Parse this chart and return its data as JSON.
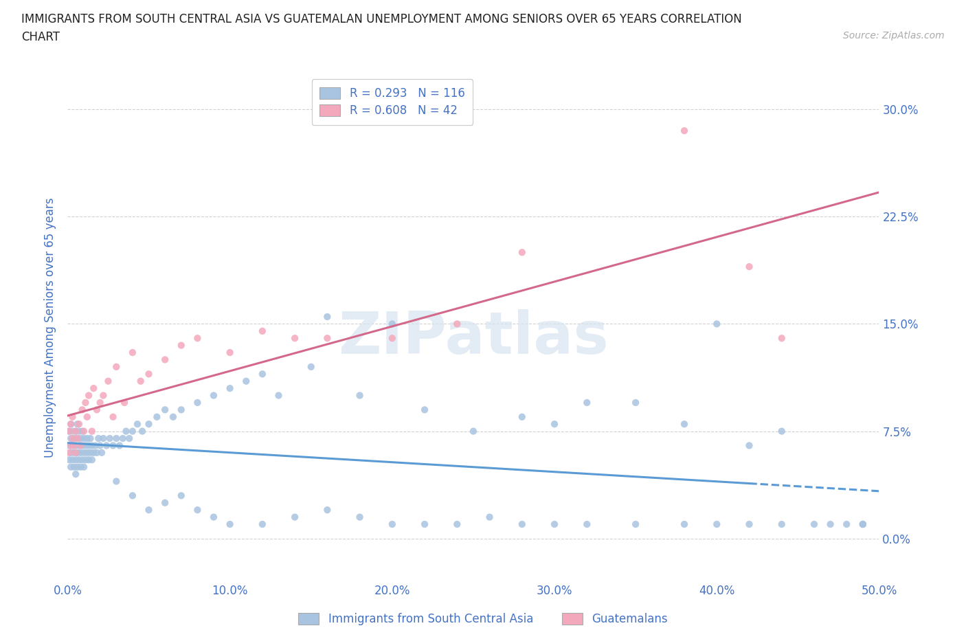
{
  "title_line1": "IMMIGRANTS FROM SOUTH CENTRAL ASIA VS GUATEMALAN UNEMPLOYMENT AMONG SENIORS OVER 65 YEARS CORRELATION",
  "title_line2": "CHART",
  "source": "Source: ZipAtlas.com",
  "ylabel": "Unemployment Among Seniors over 65 years",
  "xlim": [
    0.0,
    0.5
  ],
  "ylim": [
    -0.03,
    0.325
  ],
  "yticks": [
    0.0,
    0.075,
    0.15,
    0.225,
    0.3
  ],
  "ytick_labels": [
    "0.0%",
    "7.5%",
    "15.0%",
    "22.5%",
    "30.0%"
  ],
  "xticks": [
    0.0,
    0.1,
    0.2,
    0.3,
    0.4,
    0.5
  ],
  "xtick_labels": [
    "0.0%",
    "10.0%",
    "20.0%",
    "30.0%",
    "40.0%",
    "50.0%"
  ],
  "legend_blue_label": "Immigrants from South Central Asia",
  "legend_pink_label": "Guatemalans",
  "R_blue": "0.293",
  "N_blue": "116",
  "R_pink": "0.608",
  "N_pink": "42",
  "blue_scatter_color": "#a8c4e0",
  "pink_scatter_color": "#f4a8bc",
  "blue_line_color": "#5b9bd5",
  "pink_line_color": "#d4688a",
  "tick_color": "#4472c4",
  "legend_text_color": "#4472c4",
  "title_color": "#222222",
  "source_color": "#aaaaaa",
  "grid_color": "#cccccc",
  "background_color": "#ffffff",
  "watermark_text": "ZIPatlas",
  "blue_line_solid_end": 0.42,
  "blue_scatter_x": [
    0.001,
    0.001,
    0.001,
    0.002,
    0.002,
    0.002,
    0.002,
    0.003,
    0.003,
    0.003,
    0.004,
    0.004,
    0.004,
    0.005,
    0.005,
    0.005,
    0.005,
    0.006,
    0.006,
    0.006,
    0.006,
    0.007,
    0.007,
    0.007,
    0.008,
    0.008,
    0.008,
    0.009,
    0.009,
    0.009,
    0.01,
    0.01,
    0.01,
    0.011,
    0.011,
    0.012,
    0.012,
    0.013,
    0.013,
    0.014,
    0.014,
    0.015,
    0.015,
    0.016,
    0.017,
    0.018,
    0.019,
    0.02,
    0.021,
    0.022,
    0.024,
    0.026,
    0.028,
    0.03,
    0.032,
    0.034,
    0.036,
    0.038,
    0.04,
    0.043,
    0.046,
    0.05,
    0.055,
    0.06,
    0.065,
    0.07,
    0.08,
    0.09,
    0.1,
    0.11,
    0.12,
    0.13,
    0.15,
    0.16,
    0.18,
    0.2,
    0.22,
    0.25,
    0.28,
    0.3,
    0.32,
    0.35,
    0.38,
    0.4,
    0.42,
    0.44,
    0.03,
    0.04,
    0.05,
    0.06,
    0.07,
    0.08,
    0.09,
    0.1,
    0.12,
    0.14,
    0.16,
    0.18,
    0.2,
    0.22,
    0.24,
    0.26,
    0.28,
    0.3,
    0.32,
    0.35,
    0.38,
    0.4,
    0.42,
    0.44,
    0.46,
    0.47,
    0.48,
    0.49,
    0.49,
    0.49
  ],
  "blue_scatter_y": [
    0.055,
    0.065,
    0.075,
    0.05,
    0.06,
    0.07,
    0.08,
    0.055,
    0.065,
    0.075,
    0.05,
    0.06,
    0.07,
    0.045,
    0.055,
    0.065,
    0.075,
    0.05,
    0.06,
    0.07,
    0.08,
    0.055,
    0.065,
    0.075,
    0.05,
    0.06,
    0.07,
    0.055,
    0.065,
    0.075,
    0.05,
    0.06,
    0.07,
    0.055,
    0.065,
    0.06,
    0.07,
    0.055,
    0.065,
    0.06,
    0.07,
    0.055,
    0.065,
    0.06,
    0.065,
    0.06,
    0.07,
    0.065,
    0.06,
    0.07,
    0.065,
    0.07,
    0.065,
    0.07,
    0.065,
    0.07,
    0.075,
    0.07,
    0.075,
    0.08,
    0.075,
    0.08,
    0.085,
    0.09,
    0.085,
    0.09,
    0.095,
    0.1,
    0.105,
    0.11,
    0.115,
    0.1,
    0.12,
    0.155,
    0.1,
    0.15,
    0.09,
    0.075,
    0.085,
    0.08,
    0.095,
    0.095,
    0.08,
    0.15,
    0.065,
    0.075,
    0.04,
    0.03,
    0.02,
    0.025,
    0.03,
    0.02,
    0.015,
    0.01,
    0.01,
    0.015,
    0.02,
    0.015,
    0.01,
    0.01,
    0.01,
    0.015,
    0.01,
    0.01,
    0.01,
    0.01,
    0.01,
    0.01,
    0.01,
    0.01,
    0.01,
    0.01,
    0.01,
    0.01,
    0.01,
    0.01
  ],
  "pink_scatter_x": [
    0.001,
    0.001,
    0.002,
    0.002,
    0.003,
    0.003,
    0.004,
    0.005,
    0.005,
    0.006,
    0.007,
    0.008,
    0.009,
    0.01,
    0.011,
    0.012,
    0.013,
    0.015,
    0.016,
    0.018,
    0.02,
    0.022,
    0.025,
    0.028,
    0.03,
    0.035,
    0.04,
    0.045,
    0.05,
    0.06,
    0.07,
    0.08,
    0.1,
    0.12,
    0.14,
    0.16,
    0.2,
    0.24,
    0.28,
    0.38,
    0.42,
    0.44
  ],
  "pink_scatter_y": [
    0.06,
    0.075,
    0.065,
    0.08,
    0.07,
    0.085,
    0.065,
    0.06,
    0.075,
    0.07,
    0.08,
    0.065,
    0.09,
    0.075,
    0.095,
    0.085,
    0.1,
    0.075,
    0.105,
    0.09,
    0.095,
    0.1,
    0.11,
    0.085,
    0.12,
    0.095,
    0.13,
    0.11,
    0.115,
    0.125,
    0.135,
    0.14,
    0.13,
    0.145,
    0.14,
    0.14,
    0.14,
    0.15,
    0.2,
    0.285,
    0.19,
    0.14
  ]
}
